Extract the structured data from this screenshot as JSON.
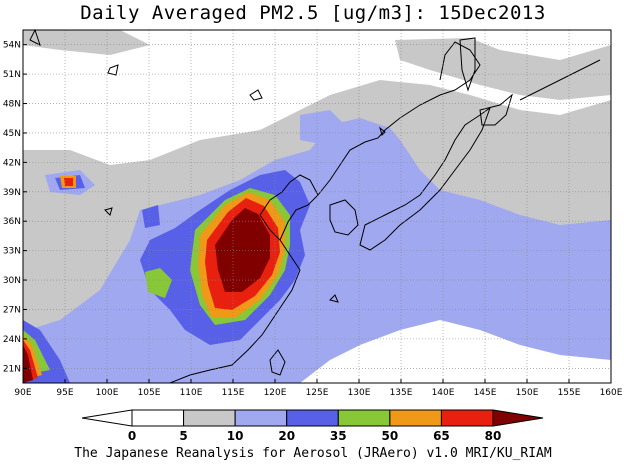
{
  "title": "Daily Averaged PM2.5 [ug/m3]: 15Dec2013",
  "footer": "The Japanese Reanalysis for Aerosol (JRAero) v1.0 MRI/KU_RIAM",
  "map": {
    "lon_range": [
      90,
      160
    ],
    "lat_range": [
      19.5,
      55.5
    ],
    "lon_ticks": [
      "90E",
      "95E",
      "100E",
      "105E",
      "110E",
      "115E",
      "120E",
      "125E",
      "130E",
      "135E",
      "140E",
      "145E",
      "150E",
      "155E",
      "160E"
    ],
    "lat_ticks": [
      "21N",
      "24N",
      "27N",
      "30N",
      "33N",
      "36N",
      "39N",
      "42N",
      "45N",
      "48N",
      "51N",
      "54N"
    ],
    "grid": true
  },
  "colorbar": {
    "levels": [
      "0",
      "5",
      "10",
      "20",
      "35",
      "50",
      "65",
      "80"
    ],
    "colors": [
      "#ffffff",
      "#ffffff",
      "#c8c8c8",
      "#a0a8f0",
      "#5860e8",
      "#88c838",
      "#f09818",
      "#e82010",
      "#800000"
    ]
  }
}
